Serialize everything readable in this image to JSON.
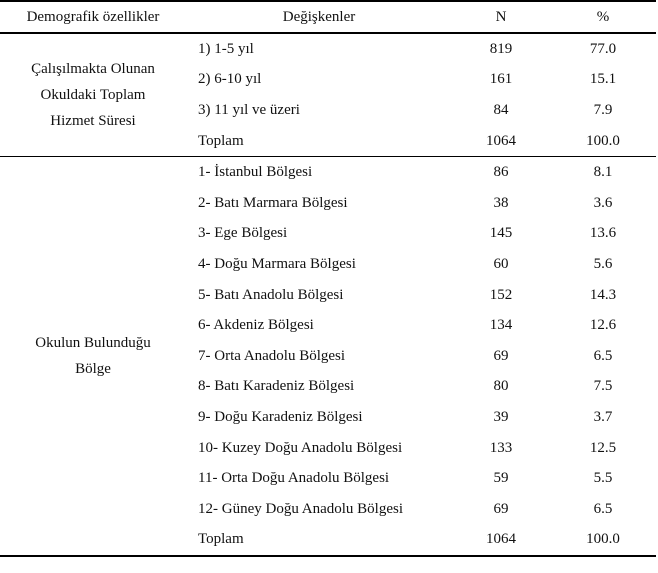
{
  "header": {
    "col1": "Demografik özellikler",
    "col2": "Değişkenler",
    "col3": "N",
    "col4": "%"
  },
  "groups": [
    {
      "label_lines": [
        "Çalışılmakta Olunan",
        "Okuldaki Toplam",
        "Hizmet Süresi"
      ],
      "rows": [
        {
          "label": "1) 1-5 yıl",
          "n": "819",
          "pct": "77.0"
        },
        {
          "label": "2) 6-10 yıl",
          "n": "161",
          "pct": "15.1"
        },
        {
          "label": "3) 11 yıl ve üzeri",
          "n": "84",
          "pct": "7.9"
        },
        {
          "label": "Toplam",
          "n": "1064",
          "pct": "100.0"
        }
      ]
    },
    {
      "label_lines": [
        "Okulun Bulunduğu",
        "Bölge"
      ],
      "rows": [
        {
          "label": "1- İstanbul Bölgesi",
          "n": "86",
          "pct": "8.1"
        },
        {
          "label": "2- Batı Marmara Bölgesi",
          "n": "38",
          "pct": "3.6"
        },
        {
          "label": "3- Ege Bölgesi",
          "n": "145",
          "pct": "13.6"
        },
        {
          "label": "4- Doğu Marmara Bölgesi",
          "n": "60",
          "pct": "5.6"
        },
        {
          "label": "5- Batı Anadolu Bölgesi",
          "n": "152",
          "pct": "14.3"
        },
        {
          "label": "6- Akdeniz Bölgesi",
          "n": "134",
          "pct": "12.6"
        },
        {
          "label": "7- Orta Anadolu Bölgesi",
          "n": "69",
          "pct": "6.5"
        },
        {
          "label": "8- Batı Karadeniz Bölgesi",
          "n": "80",
          "pct": "7.5"
        },
        {
          "label": "9- Doğu Karadeniz Bölgesi",
          "n": "39",
          "pct": "3.7"
        },
        {
          "label": "10- Kuzey Doğu Anadolu Bölgesi",
          "n": "133",
          "pct": "12.5"
        },
        {
          "label": "11- Orta Doğu Anadolu Bölgesi",
          "n": "59",
          "pct": "5.5"
        },
        {
          "label": "12- Güney Doğu Anadolu Bölgesi",
          "n": "69",
          "pct": "6.5"
        },
        {
          "label": "Toplam",
          "n": "1064",
          "pct": "100.0"
        }
      ]
    }
  ]
}
